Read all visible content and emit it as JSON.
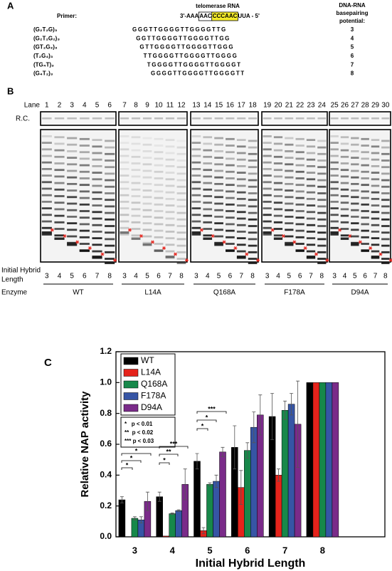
{
  "panel_a": {
    "label": "A",
    "rna_title": "telomerase RNA",
    "primer_heading": "Primer:",
    "rna": [
      "3'-AAA",
      "AAC",
      "CCCAAC",
      "UUA - 5'"
    ],
    "potential_heading": [
      "DNA-RNA",
      "basepairing",
      "potential:"
    ],
    "rows": [
      {
        "name": "(G₂T₂G)₃",
        "sequence": "GGGTTGGGGTTGGGGTTG",
        "potential": 3
      },
      {
        "name": "(G₂T₂G₂)₃",
        "sequence": "GGTTGGGGTTGGGGTTGG",
        "potential": 4
      },
      {
        "name": "(GT₂G₃)₃",
        "sequence": "GTTGGGGTTGGGGTTGGG",
        "potential": 5
      },
      {
        "name": "(T₂G₄)₃",
        "sequence": "TTGGGGTTGGGGTTGGGG",
        "potential": 6
      },
      {
        "name": "(TG₄T)₃",
        "sequence": "TGGGGTTGGGGTTGGGGT",
        "potential": 7
      },
      {
        "name": "(G₄T₂)₃",
        "sequence": "GGGGTTGGGGTTGGGGTT",
        "potential": 8
      }
    ]
  },
  "panel_b": {
    "label": "B",
    "lane_heading": "Lane",
    "lanes": [
      1,
      2,
      3,
      4,
      5,
      6,
      7,
      8,
      9,
      10,
      11,
      12,
      13,
      14,
      15,
      16,
      17,
      18,
      19,
      20,
      21,
      22,
      23,
      24,
      25,
      26,
      27,
      28,
      29,
      30
    ],
    "rc_label": "R.C.",
    "hybrid_heading": [
      "Initial Hybrid",
      "Length"
    ],
    "hybrid_lengths": [
      3,
      4,
      5,
      6,
      7,
      8
    ],
    "enzyme_heading": "Enzyme",
    "enzymes": [
      "WT",
      "L14A",
      "Q168A",
      "F178A",
      "D94A"
    ]
  },
  "chart_data": {
    "type": "bar",
    "panel_label": "C",
    "y_label": "Relative NAP activity",
    "x_label": "Initial Hybrid Length",
    "categories": [
      "3",
      "4",
      "5",
      "6",
      "7",
      "8"
    ],
    "series": [
      {
        "name": "WT",
        "color": "#000000",
        "values": [
          0.24,
          0.26,
          0.49,
          0.58,
          0.78,
          1.0
        ],
        "errors": [
          0.02,
          0.03,
          0.05,
          0.14,
          0.15,
          0
        ]
      },
      {
        "name": "L14A",
        "color": "#e5231b",
        "values": [
          0,
          0.005,
          0.04,
          0.32,
          0.4,
          1.0
        ],
        "errors": [
          0,
          0,
          0.02,
          0.11,
          0.04,
          0
        ]
      },
      {
        "name": "Q168A",
        "color": "#17884a",
        "values": [
          0.12,
          0.15,
          0.34,
          0.56,
          0.82,
          1.0
        ],
        "errors": [
          0.01,
          0.005,
          0.01,
          0.05,
          0.06,
          0
        ]
      },
      {
        "name": "F178A",
        "color": "#3655a5",
        "values": [
          0.11,
          0.17,
          0.36,
          0.71,
          0.86,
          1.0
        ],
        "errors": [
          0.02,
          0.005,
          0.04,
          0.1,
          0.07,
          0
        ]
      },
      {
        "name": "D94A",
        "color": "#7a2b89",
        "values": [
          0.23,
          0.34,
          0.55,
          0.79,
          0.73,
          1.0
        ],
        "errors": [
          0.06,
          0.1,
          0.03,
          0.13,
          0.28,
          0
        ]
      }
    ],
    "ylim": [
      0,
      1.2
    ],
    "yticks": [
      {
        "value": 0,
        "label": "0.0"
      },
      0.2,
      0.4,
      0.6,
      0.8,
      {
        "value": 1,
        "label": "1.0"
      },
      1.2
    ],
    "legend": "upper left",
    "annotations": [
      "*",
      "*",
      "*",
      "***",
      "**",
      "*",
      "***",
      "*",
      "*"
    ],
    "significance_key": [
      "*   p < 0.01",
      "**  p < 0.02",
      "*** p < 0.03"
    ]
  }
}
